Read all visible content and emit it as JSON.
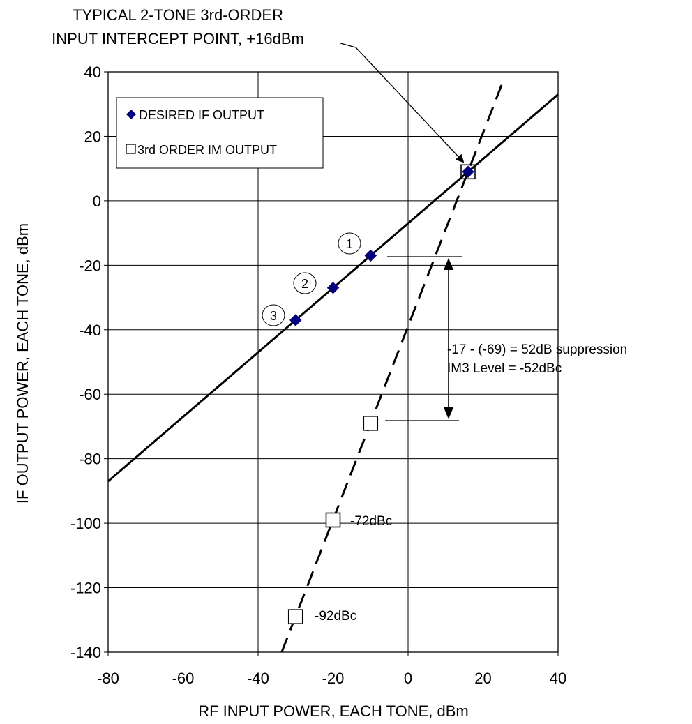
{
  "chart_data": {
    "type": "line",
    "title": "",
    "xlabel": "RF INPUT POWER, EACH TONE, dBm",
    "ylabel": "IF OUTPUT POWER, EACH TONE, dBm",
    "xlim": [
      -80,
      40
    ],
    "ylim": [
      -140,
      40
    ],
    "x_ticks": [
      -80,
      -60,
      -40,
      -20,
      0,
      20,
      40
    ],
    "y_ticks": [
      40,
      20,
      0,
      -20,
      -40,
      -60,
      -80,
      -100,
      -120,
      -140
    ],
    "grid": true,
    "legend_position": "top-left",
    "series": [
      {
        "name": "DESIRED IF OUTPUT",
        "marker": "diamond",
        "color": "#000080",
        "points": [
          [
            -30,
            -37
          ],
          [
            -20,
            -27
          ],
          [
            -10,
            -17
          ],
          [
            16,
            9
          ]
        ],
        "fit_line": [
          [
            -80,
            -87
          ],
          [
            40,
            33
          ]
        ],
        "line_style": "solid"
      },
      {
        "name": "3rd ORDER IM OUTPUT",
        "marker": "square",
        "color": "#000000",
        "points": [
          [
            -30,
            -129
          ],
          [
            -20,
            -99
          ],
          [
            -10,
            -69
          ],
          [
            16,
            9
          ]
        ],
        "fit_line": [
          [
            -33.7,
            -140
          ],
          [
            25.3,
            37
          ]
        ],
        "line_style": "dashed"
      }
    ],
    "point_labels": [
      {
        "text": "1",
        "x": -10,
        "y": -17
      },
      {
        "text": "2",
        "x": -20,
        "y": -27
      },
      {
        "text": "3",
        "x": -30,
        "y": -37
      }
    ],
    "annotations": {
      "intercept_line1": "TYPICAL 2-TONE 3rd-ORDER",
      "intercept_line2": "INPUT INTERCEPT POINT, +16dBm",
      "suppression_line1": "-17 - (-69)  = 52dB suppression",
      "suppression_line2": "IM3 Level = -52dBc",
      "im_label_72": "-72dBc",
      "im_label_92": "-92dBc"
    },
    "intercept_point": [
      16,
      9
    ]
  }
}
